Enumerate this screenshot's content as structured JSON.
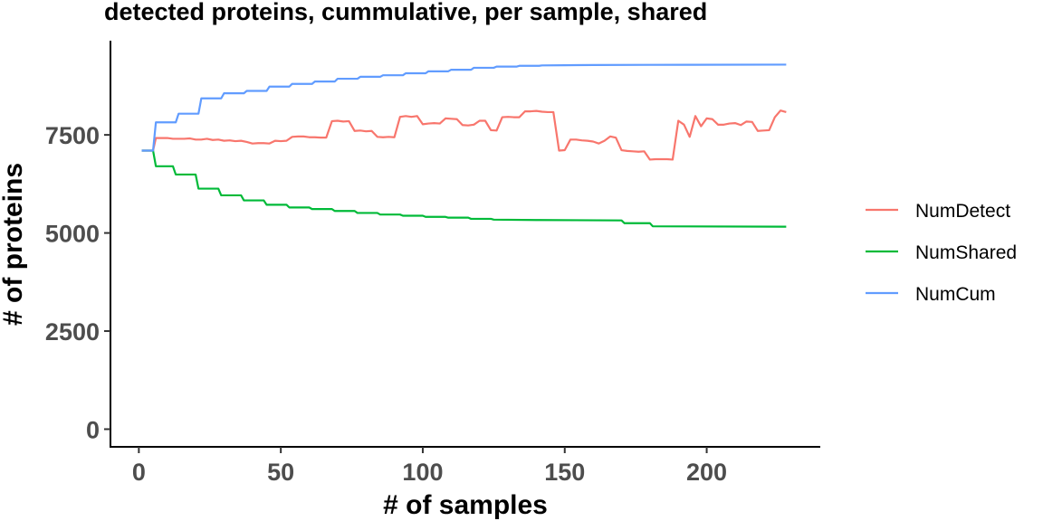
{
  "chart_data": {
    "type": "line",
    "title": "detected proteins, cummulative, per sample, shared",
    "xlabel": "# of samples",
    "ylabel": "# of proteins",
    "xlim": [
      -10,
      240
    ],
    "ylim": [
      -450,
      9900
    ],
    "x_ticks": [
      0,
      50,
      100,
      150,
      200
    ],
    "y_ticks": [
      0,
      2500,
      5000,
      7500
    ],
    "grid": false,
    "legend_position": "right",
    "series": [
      {
        "name": "NumDetect",
        "color": "#F8766D",
        "x": [
          1,
          5,
          6,
          10,
          12,
          16,
          18,
          20,
          22,
          24,
          26,
          28,
          30,
          32,
          34,
          36,
          38,
          40,
          42,
          44,
          46,
          48,
          50,
          52,
          54,
          56,
          58,
          60,
          62,
          64,
          66,
          68,
          70,
          72,
          74,
          76,
          78,
          80,
          82,
          84,
          86,
          88,
          90,
          92,
          94,
          96,
          98,
          100,
          102,
          104,
          106,
          108,
          110,
          112,
          114,
          116,
          118,
          120,
          122,
          124,
          126,
          128,
          130,
          132,
          134,
          136,
          138,
          140,
          142,
          144,
          146,
          148,
          150,
          152,
          154,
          156,
          158,
          160,
          162,
          164,
          166,
          168,
          170,
          172,
          174,
          176,
          178,
          180,
          182,
          184,
          186,
          188,
          190,
          192,
          194,
          196,
          198,
          200,
          202,
          204,
          206,
          208,
          210,
          212,
          214,
          216,
          218,
          220,
          222,
          224,
          226,
          228
        ],
        "y": [
          7100,
          7100,
          7420,
          7420,
          7400,
          7400,
          7410,
          7380,
          7380,
          7400,
          7370,
          7380,
          7350,
          7360,
          7340,
          7350,
          7320,
          7280,
          7290,
          7290,
          7280,
          7350,
          7340,
          7350,
          7450,
          7460,
          7460,
          7440,
          7440,
          7430,
          7430,
          7850,
          7860,
          7840,
          7850,
          7600,
          7610,
          7590,
          7600,
          7450,
          7440,
          7450,
          7440,
          7960,
          7980,
          7960,
          7980,
          7770,
          7790,
          7800,
          7790,
          7920,
          7910,
          7900,
          7750,
          7740,
          7760,
          7860,
          7860,
          7620,
          7610,
          7950,
          7960,
          7950,
          7950,
          8100,
          8100,
          8110,
          8090,
          8080,
          8080,
          7100,
          7110,
          7380,
          7380,
          7360,
          7350,
          7330,
          7280,
          7350,
          7460,
          7430,
          7110,
          7090,
          7080,
          7070,
          7080,
          6870,
          6880,
          6880,
          6880,
          6870,
          7860,
          7760,
          7450,
          7980,
          7720,
          7920,
          7900,
          7760,
          7760,
          7790,
          7800,
          7750,
          7840,
          7830,
          7600,
          7610,
          7620,
          7950,
          8120,
          8080
        ],
        "y_visual_offset_note": ""
      },
      {
        "name": "NumShared",
        "color": "#00BA38",
        "x": [
          1,
          5,
          6,
          12,
          13,
          20,
          21,
          28,
          29,
          36,
          37,
          44,
          45,
          52,
          53,
          60,
          61,
          68,
          69,
          76,
          77,
          84,
          85,
          92,
          93,
          100,
          101,
          108,
          109,
          116,
          117,
          124,
          125,
          140,
          141,
          170,
          171,
          180,
          181,
          228
        ],
        "y": [
          7100,
          7100,
          6700,
          6700,
          6490,
          6490,
          6130,
          6130,
          5960,
          5960,
          5830,
          5830,
          5720,
          5720,
          5650,
          5650,
          5610,
          5610,
          5560,
          5560,
          5510,
          5510,
          5470,
          5470,
          5440,
          5440,
          5410,
          5410,
          5390,
          5390,
          5360,
          5360,
          5340,
          5330,
          5330,
          5320,
          5250,
          5250,
          5170,
          5160
        ]
      },
      {
        "name": "NumCum",
        "color": "#619CFF",
        "x": [
          1,
          5,
          6,
          13,
          14,
          21,
          22,
          29,
          30,
          37,
          38,
          45,
          46,
          53,
          54,
          61,
          62,
          69,
          70,
          77,
          78,
          85,
          86,
          93,
          94,
          101,
          102,
          109,
          110,
          117,
          118,
          125,
          126,
          133,
          134,
          141,
          142,
          150,
          160,
          180,
          228
        ],
        "y": [
          7100,
          7100,
          7820,
          7820,
          8040,
          8040,
          8430,
          8430,
          8560,
          8560,
          8620,
          8620,
          8730,
          8730,
          8800,
          8800,
          8860,
          8860,
          8930,
          8930,
          8980,
          8980,
          9020,
          9020,
          9070,
          9070,
          9120,
          9120,
          9160,
          9160,
          9210,
          9210,
          9240,
          9240,
          9260,
          9260,
          9270,
          9275,
          9280,
          9285,
          9290
        ]
      }
    ]
  }
}
